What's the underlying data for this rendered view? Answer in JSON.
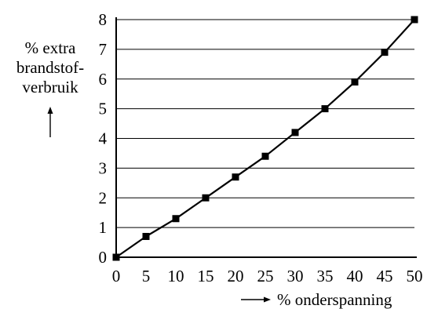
{
  "chart_data": {
    "type": "line",
    "ylabel_lines": [
      "% extra",
      "brandstof-",
      "verbruik"
    ],
    "xlabel": "% onderspanning",
    "x": [
      0,
      5,
      10,
      15,
      20,
      25,
      30,
      35,
      40,
      45,
      50
    ],
    "series": [
      {
        "values": [
          0,
          0.7,
          1.3,
          2.0,
          2.7,
          3.4,
          4.2,
          5.0,
          5.9,
          6.9,
          8.0
        ]
      }
    ],
    "xlim": [
      0,
      50
    ],
    "ylim": [
      0,
      8
    ],
    "x_ticks": [
      0,
      5,
      10,
      15,
      20,
      25,
      30,
      35,
      40,
      45,
      50
    ],
    "y_ticks": [
      0,
      1,
      2,
      3,
      4,
      5,
      6,
      7,
      8
    ],
    "grid": "horizontal",
    "marker": "square",
    "color": "#000000"
  }
}
